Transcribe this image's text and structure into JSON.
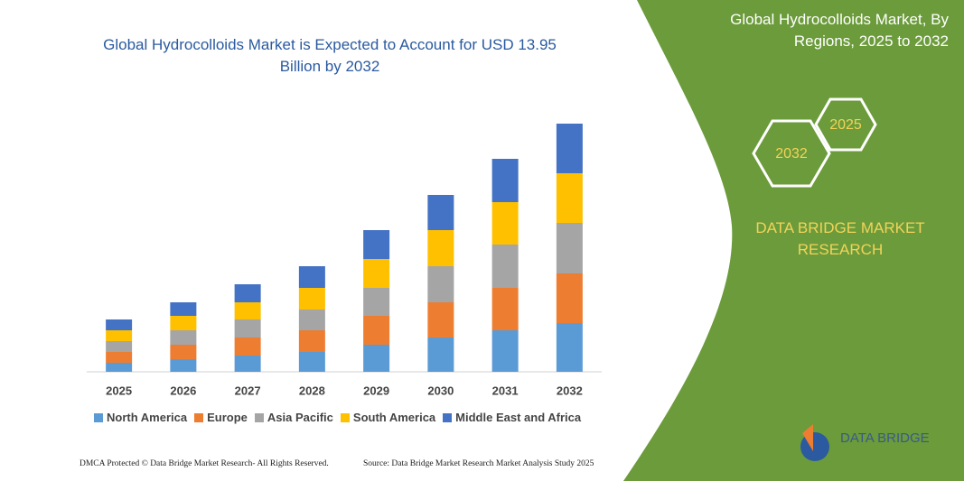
{
  "chart_data": {
    "type": "stacked-bar",
    "title": "Global Hydrocolloids Market is Expected to Account for USD 13.95 Billion by 2032",
    "categories": [
      "2025",
      "2026",
      "2027",
      "2028",
      "2029",
      "2030",
      "2031",
      "2032"
    ],
    "series": [
      {
        "name": "North America",
        "color": "#5b9bd5",
        "values": [
          10,
          14,
          18,
          22,
          30,
          38,
          46,
          54
        ]
      },
      {
        "name": "Europe",
        "color": "#ed7d31",
        "values": [
          12,
          16,
          20,
          24,
          32,
          39,
          47,
          55
        ]
      },
      {
        "name": "Asia Pacific",
        "color": "#a5a5a5",
        "values": [
          12,
          16,
          20,
          23,
          31,
          40,
          48,
          56
        ]
      },
      {
        "name": "South America",
        "color": "#ffc000",
        "values": [
          12,
          16,
          19,
          24,
          32,
          40,
          47,
          55
        ]
      },
      {
        "name": "Middle East and Africa",
        "color": "#4472c4",
        "values": [
          12,
          15,
          20,
          24,
          32,
          39,
          48,
          55
        ]
      }
    ]
  },
  "panel": {
    "title": "Global Hydrocolloids Market, By Regions, 2025 to 2032",
    "hex_small": "2025",
    "hex_large": "2032",
    "brand": "DATA BRIDGE MARKET RESEARCH",
    "logo": "DATA BRIDGE"
  },
  "footer": {
    "left": "DMCA Protected © Data Bridge Market Research- All Rights Reserved.",
    "right": "Source: Data Bridge Market Research Market Analysis Study 2025"
  }
}
